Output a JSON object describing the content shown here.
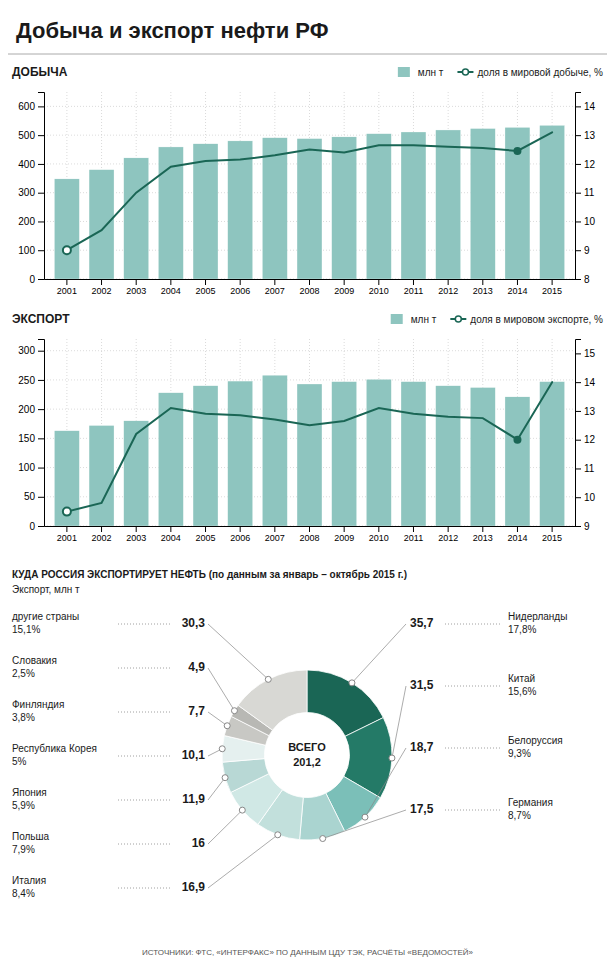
{
  "title": "Добыча и экспорт нефти РФ",
  "chart_data": [
    {
      "type": "bar",
      "title": "ДОБЫЧА",
      "categories": [
        "2001",
        "2002",
        "2003",
        "2004",
        "2005",
        "2006",
        "2007",
        "2008",
        "2009",
        "2010",
        "2011",
        "2012",
        "2013",
        "2014",
        "2015"
      ],
      "series": [
        {
          "name": "млн т",
          "type": "bar",
          "color": "#8ec5bf",
          "values": [
            348,
            380,
            421,
            459,
            470,
            480,
            491,
            488,
            494,
            505,
            511,
            518,
            523,
            527,
            534
          ]
        },
        {
          "name": "доля в мировой добыче, %",
          "type": "line",
          "axis": "y2",
          "color": "#1a6655",
          "marker": "circle",
          "values": [
            9.0,
            9.7,
            11.0,
            11.9,
            12.1,
            12.15,
            12.3,
            12.5,
            12.4,
            12.65,
            12.65,
            12.6,
            12.55,
            12.45,
            13.1
          ]
        }
      ],
      "ylim": [
        0,
        650
      ],
      "yticks": [
        0,
        100,
        200,
        300,
        400,
        500,
        600
      ],
      "y2lim": [
        8,
        14.5
      ],
      "y2ticks": [
        8,
        9,
        10,
        11,
        12,
        13,
        14
      ],
      "grid": true,
      "legend": "upper right"
    },
    {
      "type": "bar",
      "title": "ЭКСПОРТ",
      "categories": [
        "2001",
        "2002",
        "2003",
        "2004",
        "2005",
        "2006",
        "2007",
        "2008",
        "2009",
        "2010",
        "2011",
        "2012",
        "2013",
        "2014",
        "2015"
      ],
      "series": [
        {
          "name": "млн т",
          "type": "bar",
          "color": "#8ec5bf",
          "values": [
            163,
            172,
            180,
            228,
            240,
            248,
            258,
            243,
            247,
            251,
            247,
            240,
            237,
            221,
            247
          ]
        },
        {
          "name": "доля в мировом экспорте, %",
          "type": "line",
          "axis": "y2",
          "color": "#1a6655",
          "marker": "circle",
          "values": [
            9.5,
            9.8,
            12.2,
            13.1,
            12.9,
            12.85,
            12.7,
            12.5,
            12.65,
            13.1,
            12.9,
            12.8,
            12.75,
            12.0,
            14.0
          ]
        }
      ],
      "ylim": [
        0,
        320
      ],
      "yticks": [
        0,
        50,
        100,
        150,
        200,
        250,
        300
      ],
      "y2lim": [
        9,
        15.5
      ],
      "y2ticks": [
        9,
        10,
        11,
        12,
        13,
        14,
        15
      ],
      "grid": true,
      "legend": "upper right"
    },
    {
      "type": "pie",
      "title": "КУДА РОССИЯ ЭКСПОРТИРУЕТ НЕФТЬ (по данным за январь – октябрь 2015 г.)",
      "subtitle": "Экспорт, млн т",
      "categories": [
        "Нидерланды",
        "Китай",
        "Белоруссия",
        "Германия",
        "Италия",
        "Польша",
        "Япония",
        "Республика Корея",
        "Финляндия",
        "Словакия",
        "другие страны"
      ],
      "values": [
        35.7,
        31.5,
        18.7,
        17.5,
        16.9,
        16.0,
        11.9,
        10.1,
        7.7,
        4.9,
        30.3
      ],
      "value_labels": [
        "35,7",
        "31,5",
        "18,7",
        "17,5",
        "16,9",
        "16",
        "11,9",
        "10,1",
        "7,7",
        "4,9",
        "30,3"
      ],
      "shares": [
        17.8,
        15.6,
        9.3,
        8.7,
        8.4,
        7.9,
        5.9,
        5,
        3.8,
        2.5,
        15.1
      ],
      "share_labels": [
        "17,8%",
        "15,6%",
        "9,3%",
        "8,7%",
        "8,4%",
        "7,9%",
        "5,9%",
        "5%",
        "3,8%",
        "2,5%",
        "15,1%"
      ],
      "colors": [
        "#1a6655",
        "#247a67",
        "#7bbfb8",
        "#aad4d0",
        "#c2e0dc",
        "#d0e8e5",
        "#b8d8d5",
        "#e5f0ef",
        "#c8c8c4",
        "#b8b8b4",
        "#d8d8d4"
      ],
      "total": {
        "value": 201.2,
        "label": "201,2"
      },
      "annotations": [
        "ВСЕГО",
        "ИСТОЧНИКИ: ФТС, «ИНТЕРФАКС» ПО ДАННЫМ ЦДУ ТЭК, РАСЧЁТЫ «ВЕДОМОСТЕЙ»"
      ]
    }
  ]
}
